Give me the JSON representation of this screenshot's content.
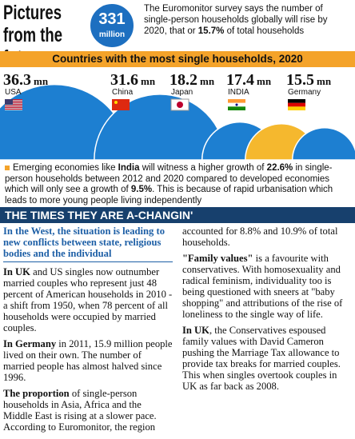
{
  "header": {
    "title": "Pictures from the future",
    "badge": {
      "value": "331",
      "unit": "million"
    },
    "summary": [
      {
        "text": "The Euromonitor survey says the number of single-person households globally will rise by 2020, that or ",
        "bold": false
      },
      {
        "text": "15.7%",
        "bold": true
      },
      {
        "text": " of total households",
        "bold": false
      }
    ]
  },
  "chart": {
    "title": "Countries with the most single households, 2020",
    "unit": "mn",
    "countries": [
      {
        "name": "USA",
        "value": 36.3,
        "color": "#1d7fd1"
      },
      {
        "name": "China",
        "value": 31.6,
        "color": "#1d7fd1"
      },
      {
        "name": "Japan",
        "value": 18.2,
        "color": "#1d7fd1"
      },
      {
        "name": "INDIA",
        "value": 17.4,
        "color": "#f5b82e"
      },
      {
        "name": "Germany",
        "value": 15.5,
        "color": "#1d7fd1"
      }
    ]
  },
  "note": [
    {
      "text": "Emerging economies like ",
      "bold": false
    },
    {
      "text": "India",
      "bold": true
    },
    {
      "text": " will witness a higher growth of ",
      "bold": false
    },
    {
      "text": "22.6%",
      "bold": true
    },
    {
      "text": " in single-person households between 2012 and 2020 compared to developed economies which will only see a growth of ",
      "bold": false
    },
    {
      "text": "9.5%",
      "bold": true
    },
    {
      "text": ". This is because of rapid urbanisation which leads to more young people living independently",
      "bold": false
    }
  ],
  "section": {
    "title": "THE TIMES THEY ARE A-CHANGIN'",
    "lead": "In the West, the situation is leading to new conflicts between state, religious bodies and the individual",
    "paragraphs": [
      [
        {
          "text": "In UK",
          "bold": true
        },
        {
          "text": " and US singles now outnumber married couples who represent just 48 percent of American households in 2010 - a shift from 1950, when 78 percent of all households were occupied by married couples.",
          "bold": false
        }
      ],
      [
        {
          "text": "In Germany",
          "bold": true
        },
        {
          "text": " in 2011, 15.9 million people lived on their own. The number of married people has almost halved since 1996.",
          "bold": false
        }
      ],
      [
        {
          "text": "The proportion",
          "bold": true
        },
        {
          "text": " of single-person households in Asia, Africa and the Middle East is rising at a slower pace. According to Euromonitor, the region accounted for 8.8% and 10.9% of total households.",
          "bold": false
        }
      ],
      [
        {
          "text": "\"Family values\"",
          "bold": true
        },
        {
          "text": " is a favourite with conservatives. With homosexuality and radical feminism, individuality too is being questioned with sneers at \"baby shopping\" and attributions of the rise of loneliness to the single way of life.",
          "bold": false
        }
      ],
      [
        {
          "text": "In UK",
          "bold": true
        },
        {
          "text": ", the Conservatives espoused family values with David Cameron pushing the Marriage Tax allowance to provide tax breaks for married couples. This when singles overtook couples in UK as far back as 2008.",
          "bold": false
        }
      ]
    ]
  }
}
